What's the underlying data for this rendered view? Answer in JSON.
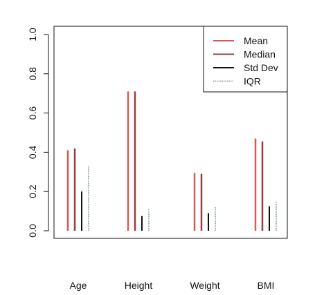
{
  "chart_data": {
    "type": "bar",
    "categories": [
      "Age",
      "Height",
      "Weight",
      "BMI"
    ],
    "series": [
      {
        "name": "Mean",
        "values": [
          0.41,
          0.71,
          0.295,
          0.47
        ],
        "color": "#d45a5a",
        "style": "solid"
      },
      {
        "name": "Median",
        "values": [
          0.42,
          0.71,
          0.29,
          0.455
        ],
        "color": "#9e3a3a",
        "style": "solid"
      },
      {
        "name": "Std Dev",
        "values": [
          0.2,
          0.075,
          0.09,
          0.125
        ],
        "color": "#111111",
        "style": "solid"
      },
      {
        "name": "IQR",
        "values": [
          0.33,
          0.11,
          0.12,
          0.15
        ],
        "color": "#9fb3b3",
        "style": "dotted"
      }
    ],
    "ylim": [
      0,
      1
    ],
    "yticks": [
      0.0,
      0.2,
      0.4,
      0.6,
      0.8,
      1.0
    ],
    "ytick_labels": [
      "0.0",
      "0.2",
      "0.4",
      "0.6",
      "0.8",
      "1.0"
    ],
    "grid": false,
    "legend_position": "top-right"
  }
}
